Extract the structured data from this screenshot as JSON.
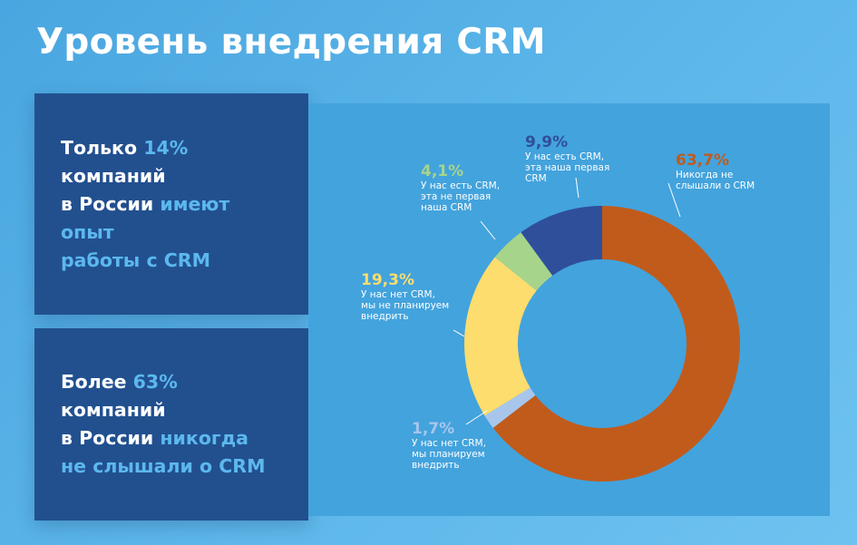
{
  "header": {
    "title": "Уровень внедрения CRM"
  },
  "cards": [
    {
      "lines": [
        [
          {
            "text": "Только ",
            "hl": false
          },
          {
            "text": "14%",
            "hl": true
          }
        ],
        [
          {
            "text": "компаний",
            "hl": false
          }
        ],
        [
          {
            "text": "в России ",
            "hl": false
          },
          {
            "text": "имеют",
            "hl": true
          }
        ],
        [
          {
            "text": "опыт",
            "hl": true
          }
        ],
        [
          {
            "text": "работы с CRM",
            "hl": true
          }
        ]
      ]
    },
    {
      "lines": [
        [
          {
            "text": "Более ",
            "hl": false
          },
          {
            "text": "63%",
            "hl": true
          }
        ],
        [
          {
            "text": "компаний",
            "hl": false
          }
        ],
        [
          {
            "text": "в России ",
            "hl": false
          },
          {
            "text": "никогда",
            "hl": true
          }
        ],
        [
          {
            "text": "не слышали о CRM",
            "hl": true
          }
        ]
      ]
    }
  ],
  "chart_data": {
    "type": "pie",
    "donut": true,
    "categories": [
      "Никогда не слышали о CRM",
      "У нас нет CRM, мы планируем внедрить",
      "У нас нет CRM, мы не планируем внедрить",
      "У нас есть CRM, эта не первая наша CRM",
      "У нас есть CRM, эта наша первая CRM"
    ],
    "values": [
      63.7,
      1.7,
      19.3,
      4.1,
      9.9
    ],
    "value_labels": [
      "63,7%",
      "1,7%",
      "19,3%",
      "4,1%",
      "9,9%"
    ],
    "label_lines": [
      [
        "Никогда не",
        "слышали о CRM"
      ],
      [
        "У нас нет CRM,",
        "мы планируем",
        "внедрить"
      ],
      [
        "У нас нет CRM,",
        "мы не планируем",
        "внедрить"
      ],
      [
        "У нас есть CRM,",
        "эта не первая",
        "наша CRM"
      ],
      [
        "У нас есть CRM,",
        "эта наша первая",
        "CRM"
      ]
    ],
    "colors": [
      "#c15b1b",
      "#a8c6ec",
      "#fcdd6e",
      "#a6d48b",
      "#2f4f9a"
    ],
    "percent_colors": [
      "#c15b1b",
      "#a8c6ec",
      "#fcdd6e",
      "#a6d48b",
      "#2f4f9a"
    ],
    "start_angle_deg": 0,
    "direction": "clockwise"
  }
}
